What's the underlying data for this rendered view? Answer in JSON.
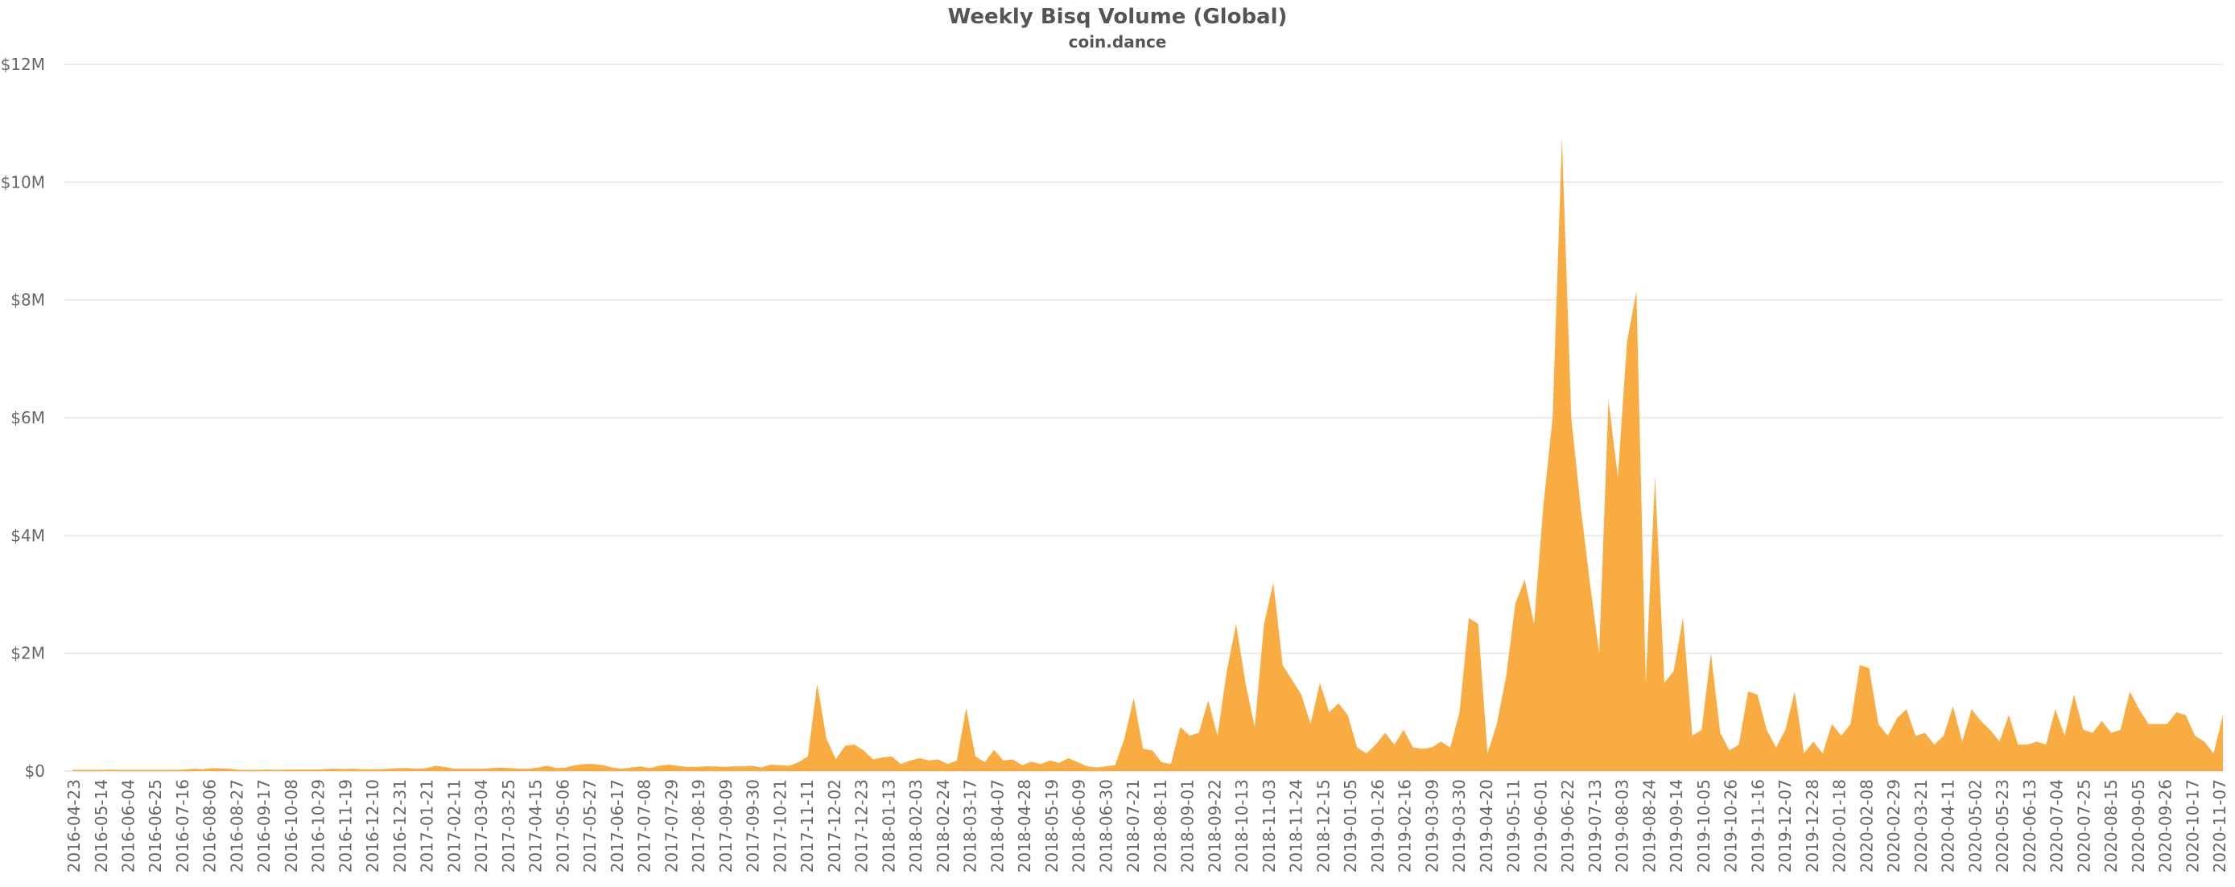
{
  "chart_data": {
    "type": "area",
    "title": "Weekly Bisq Volume (Global)",
    "subtitle": "coin.dance",
    "xlabel": "",
    "ylabel": "",
    "ylim": [
      0,
      12000000
    ],
    "y_ticks": [
      {
        "value": 0,
        "label": "$0"
      },
      {
        "value": 2000000,
        "label": "$2M"
      },
      {
        "value": 4000000,
        "label": "$4M"
      },
      {
        "value": 6000000,
        "label": "$6M"
      },
      {
        "value": 8000000,
        "label": "$8M"
      },
      {
        "value": 10000000,
        "label": "$10M"
      },
      {
        "value": 12000000,
        "label": "$12M"
      }
    ],
    "x_tick_labels": [
      "2016-04-23",
      "2016-05-14",
      "2016-06-04",
      "2016-06-25",
      "2016-07-16",
      "2016-08-06",
      "2016-08-27",
      "2016-09-17",
      "2016-10-08",
      "2016-10-29",
      "2016-11-19",
      "2016-12-10",
      "2016-12-31",
      "2017-01-21",
      "2017-02-11",
      "2017-03-04",
      "2017-03-25",
      "2017-04-15",
      "2017-05-06",
      "2017-05-27",
      "2017-06-17",
      "2017-07-08",
      "2017-07-29",
      "2017-08-19",
      "2017-09-09",
      "2017-09-30",
      "2017-10-21",
      "2017-11-11",
      "2017-12-02",
      "2017-12-23",
      "2018-01-13",
      "2018-02-03",
      "2018-02-24",
      "2018-03-17",
      "2018-04-07",
      "2018-04-28",
      "2018-05-19",
      "2018-06-09",
      "2018-06-30",
      "2018-07-21",
      "2018-08-11",
      "2018-09-01",
      "2018-09-22",
      "2018-10-13",
      "2018-11-03",
      "2018-11-24",
      "2018-12-15",
      "2019-01-05",
      "2019-01-26",
      "2019-02-16",
      "2019-03-09",
      "2019-03-30",
      "2019-04-20",
      "2019-05-11",
      "2019-06-01",
      "2019-06-22",
      "2019-07-13",
      "2019-08-03",
      "2019-08-24",
      "2019-09-14",
      "2019-10-05",
      "2019-10-26",
      "2019-11-16",
      "2019-12-07",
      "2019-12-28",
      "2020-01-18",
      "2020-02-08",
      "2020-02-29",
      "2020-03-21",
      "2020-04-11",
      "2020-05-02",
      "2020-05-23",
      "2020-06-13",
      "2020-07-04",
      "2020-07-25",
      "2020-08-15",
      "2020-09-05",
      "2020-09-26",
      "2020-10-17",
      "2020-11-07"
    ],
    "colors": {
      "area": "#f9a531",
      "grid": "#e6e6e6",
      "text": "#666666",
      "title": "#555555"
    },
    "grid": true,
    "legend": false,
    "series": [
      {
        "values": [
          20000,
          20000,
          20000,
          20000,
          25000,
          20000,
          20000,
          20000,
          20000,
          20000,
          20000,
          20000,
          25000,
          40000,
          30000,
          50000,
          45000,
          40000,
          20000,
          20000,
          20000,
          25000,
          20000,
          25000,
          25000,
          25000,
          25000,
          30000,
          40000,
          35000,
          40000,
          30000,
          30000,
          30000,
          40000,
          50000,
          50000,
          40000,
          50000,
          90000,
          70000,
          40000,
          40000,
          40000,
          40000,
          50000,
          60000,
          50000,
          40000,
          40000,
          60000,
          90000,
          50000,
          60000,
          100000,
          120000,
          120000,
          100000,
          60000,
          40000,
          60000,
          80000,
          50000,
          90000,
          110000,
          90000,
          70000,
          70000,
          80000,
          80000,
          70000,
          80000,
          80000,
          90000,
          60000,
          110000,
          100000,
          90000,
          150000,
          250000,
          1480000,
          550000,
          200000,
          430000,
          450000,
          350000,
          200000,
          230000,
          250000,
          120000,
          180000,
          220000,
          180000,
          200000,
          120000,
          180000,
          1070000,
          250000,
          150000,
          360000,
          180000,
          200000,
          100000,
          160000,
          120000,
          180000,
          140000,
          220000,
          150000,
          80000,
          60000,
          80000,
          100000,
          550000,
          1240000,
          380000,
          350000,
          150000,
          120000,
          750000,
          600000,
          650000,
          1200000,
          600000,
          1700000,
          2500000,
          1500000,
          750000,
          2500000,
          3200000,
          1800000,
          1550000,
          1300000,
          800000,
          1500000,
          1000000,
          1150000,
          950000,
          400000,
          300000,
          450000,
          650000,
          450000,
          700000,
          400000,
          380000,
          400000,
          500000,
          400000,
          1000000,
          2600000,
          2500000,
          300000,
          800000,
          1600000,
          2850000,
          3250000,
          2500000,
          4500000,
          6000000,
          10750000,
          6000000,
          4500000,
          3200000,
          2000000,
          6300000,
          5000000,
          7300000,
          8150000,
          1500000,
          5000000,
          1500000,
          1700000,
          2600000,
          600000,
          700000,
          2000000,
          650000,
          350000,
          450000,
          1350000,
          1300000,
          700000,
          400000,
          700000,
          1350000,
          300000,
          500000,
          300000,
          800000,
          600000,
          800000,
          1800000,
          1750000,
          800000,
          600000,
          900000,
          1050000,
          600000,
          650000,
          450000,
          600000,
          1100000,
          500000,
          1050000,
          850000,
          700000,
          500000,
          950000,
          450000,
          450000,
          500000,
          450000,
          1050000,
          600000,
          1300000,
          700000,
          650000,
          850000,
          650000,
          700000,
          1350000,
          1050000,
          800000,
          800000,
          800000,
          1000000,
          950000,
          600000,
          500000,
          300000,
          950000
        ]
      }
    ]
  }
}
